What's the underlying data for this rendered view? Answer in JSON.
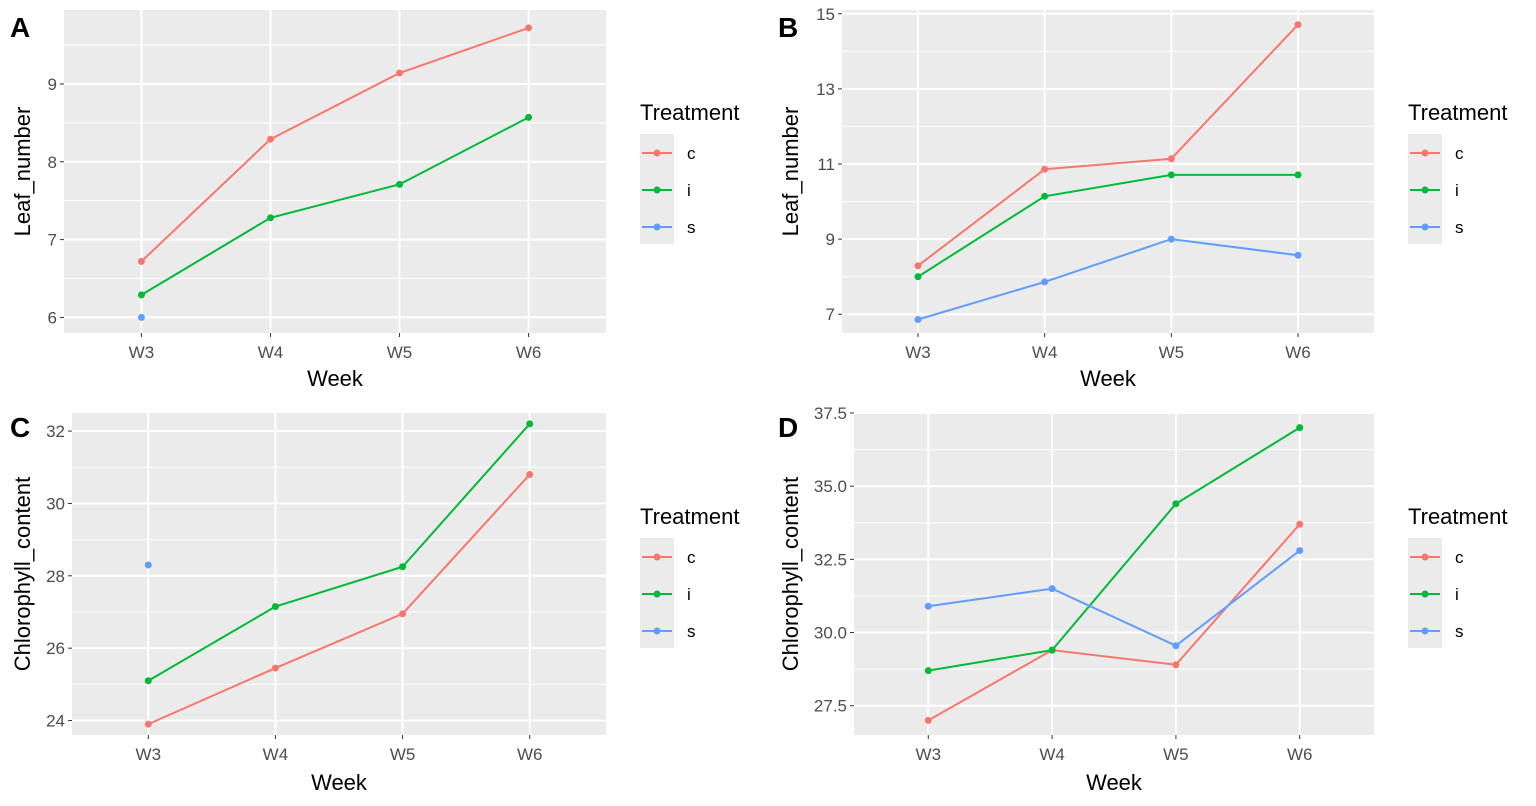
{
  "colors": {
    "panel_bg": "#EBEBEB",
    "grid": "#FFFFFF",
    "tick": "#333333",
    "series": {
      "c": "#F8766D",
      "i": "#00BA38",
      "s": "#619CFF"
    }
  },
  "chart_data": [
    {
      "panel": "A",
      "type": "line",
      "categories": [
        "W3",
        "W4",
        "W5",
        "W6"
      ],
      "xlabel": "Week",
      "ylabel": "Leaf_number",
      "ylim": [
        5.8,
        9.95
      ],
      "yticks": [
        6,
        7,
        8,
        9
      ],
      "tick_labels": [
        "6",
        "7",
        "8",
        "9"
      ],
      "grid": true,
      "legend": {
        "title": "Treatment",
        "position": "right"
      },
      "series": [
        {
          "name": "c",
          "values": [
            6.72,
            8.29,
            9.14,
            9.72
          ]
        },
        {
          "name": "i",
          "values": [
            6.29,
            7.28,
            7.71,
            8.57
          ]
        },
        {
          "name": "s",
          "values": [
            6.0,
            null,
            null,
            null
          ]
        }
      ]
    },
    {
      "panel": "B",
      "type": "line",
      "categories": [
        "W3",
        "W4",
        "W5",
        "W6"
      ],
      "xlabel": "Week",
      "ylabel": "Leaf_number",
      "ylim": [
        6.5,
        15.1
      ],
      "yticks": [
        7,
        9,
        11,
        13,
        15
      ],
      "tick_labels": [
        "7",
        "9",
        "11",
        "13",
        "15"
      ],
      "grid": true,
      "legend": {
        "title": "Treatment",
        "position": "right"
      },
      "series": [
        {
          "name": "c",
          "values": [
            8.29,
            10.86,
            11.14,
            14.71
          ]
        },
        {
          "name": "i",
          "values": [
            8.0,
            10.14,
            10.71,
            10.71
          ]
        },
        {
          "name": "s",
          "values": [
            6.86,
            7.86,
            9.0,
            8.57
          ]
        }
      ]
    },
    {
      "panel": "C",
      "type": "line",
      "categories": [
        "W3",
        "W4",
        "W5",
        "W6"
      ],
      "xlabel": "Week",
      "ylabel": "Chlorophyll_content",
      "ylim": [
        23.6,
        32.5
      ],
      "yticks": [
        24,
        26,
        28,
        30,
        32
      ],
      "tick_labels": [
        "24",
        "26",
        "28",
        "30",
        "32"
      ],
      "grid": true,
      "legend": {
        "title": "Treatment",
        "position": "right"
      },
      "series": [
        {
          "name": "c",
          "values": [
            23.9,
            25.45,
            26.95,
            30.8
          ]
        },
        {
          "name": "i",
          "values": [
            25.1,
            27.15,
            28.25,
            32.2
          ]
        },
        {
          "name": "s",
          "values": [
            28.3,
            null,
            null,
            null
          ]
        }
      ]
    },
    {
      "panel": "D",
      "type": "line",
      "categories": [
        "W3",
        "W4",
        "W5",
        "W6"
      ],
      "xlabel": "Week",
      "ylabel": "Chlorophyll_content",
      "ylim": [
        26.5,
        37.5
      ],
      "yticks": [
        27.5,
        30.0,
        32.5,
        35.0,
        37.5
      ],
      "tick_labels": [
        "27.5",
        "30.0",
        "32.5",
        "35.0",
        "37.5"
      ],
      "grid": true,
      "legend": {
        "title": "Treatment",
        "position": "right"
      },
      "series": [
        {
          "name": "c",
          "values": [
            27.0,
            29.4,
            28.9,
            33.7
          ]
        },
        {
          "name": "i",
          "values": [
            28.7,
            29.4,
            34.4,
            37.0
          ]
        },
        {
          "name": "s",
          "values": [
            30.9,
            31.5,
            29.55,
            32.8
          ]
        }
      ]
    }
  ]
}
